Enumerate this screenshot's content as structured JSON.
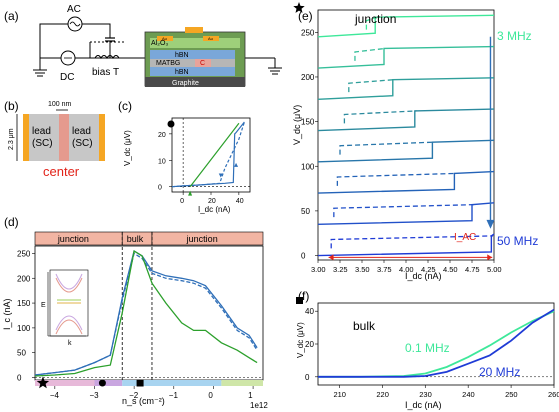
{
  "panels": {
    "a": {
      "label": "(a)",
      "ac": "AC",
      "dc": "DC",
      "biasT": "bias T",
      "layers": [
        "Al₂O₃",
        "Au",
        "Au",
        "hBN",
        "MATBG",
        "C",
        "hBN",
        "Graphite"
      ]
    },
    "b": {
      "label": "(b)",
      "scale_top": "100 nm",
      "scale_side": "2.3 μm",
      "lead": "lead",
      "sc": "(SC)",
      "center": "center"
    },
    "c": {
      "label": "(c)",
      "ylabel": "V_dc (μV)",
      "xlabel": "I_dc (nA)",
      "xticks": [
        "0",
        "20",
        "40"
      ],
      "yticks": [
        "0",
        "10",
        "20"
      ]
    },
    "d": {
      "label": "(d)",
      "ylabel": "I_c (nA)",
      "xlabel": "n_s (cm⁻²)",
      "exp": "1e12",
      "regions": [
        "junction",
        "bulk",
        "junction"
      ],
      "xticks": [
        "−4",
        "−3",
        "−2",
        "−1",
        "0",
        "1"
      ],
      "yticks": [
        "0",
        "50",
        "100",
        "150",
        "200",
        "250"
      ],
      "inset_E": "E",
      "inset_k": "k"
    },
    "e": {
      "label": "(e)",
      "title": "junction",
      "ylabel": "V_dc (μV)",
      "xlabel": "I_dc (nA)",
      "xticks": [
        "3.00",
        "3.25",
        "3.50",
        "3.75",
        "4.00",
        "4.25",
        "4.50",
        "4.75",
        "5.00"
      ],
      "yticks": [
        "0",
        "50",
        "100",
        "150",
        "200",
        "250"
      ],
      "top_freq": "3 MHz",
      "bottom_freq": "50 MHz",
      "iac": "I_AC"
    },
    "f": {
      "label": "(f)",
      "title": "bulk",
      "ylabel": "V_dc (μV)",
      "xlabel": "I_dc (nA)",
      "xticks": [
        "210",
        "220",
        "230",
        "240",
        "250",
        "260"
      ],
      "yticks": [
        "0",
        "20",
        "40"
      ],
      "freq_a": "0.1 MHz",
      "freq_b": "20 MHz"
    }
  },
  "chart_data": [
    {
      "type": "line",
      "panel": "c",
      "xlim": [
        -8,
        48
      ],
      "ylim": [
        -2,
        26
      ],
      "series": [
        {
          "x": [
            -8,
            0,
            10,
            20,
            30,
            36,
            37,
            38,
            44
          ],
          "y": [
            0,
            0.3,
            0.6,
            1.0,
            1.3,
            1.6,
            20,
            20.5,
            24.5
          ]
        },
        {
          "x": [
            -8,
            0,
            10,
            20,
            26,
            27,
            30,
            40,
            44
          ],
          "y": [
            0,
            0.3,
            0.6,
            1.0,
            1.3,
            2.5,
            7,
            18,
            24.5
          ],
          "dashed": true
        },
        {
          "x": [
            5,
            40
          ],
          "y": [
            0,
            24
          ],
          "color": "green"
        }
      ]
    },
    {
      "type": "line",
      "panel": "d",
      "xlim": [
        -4.5,
        1.25
      ],
      "ylim": [
        -5,
        265
      ],
      "regions": [
        {
          "name": "junction",
          "from": -4.5,
          "to": -2.3
        },
        {
          "name": "bulk",
          "from": -2.3,
          "to": -1.55
        },
        {
          "name": "junction",
          "from": -1.55,
          "to": 1.25
        }
      ],
      "series": [
        {
          "name": "blue",
          "x": [
            -4.5,
            -4.0,
            -3.5,
            -3.0,
            -2.6,
            -2.3,
            -2.0,
            -1.8,
            -1.55,
            -1.2,
            -0.8,
            -0.5,
            -0.2,
            0.2,
            0.6,
            0.9,
            1.1
          ],
          "y": [
            5,
            10,
            15,
            30,
            45,
            160,
            255,
            245,
            215,
            205,
            200,
            195,
            185,
            145,
            100,
            85,
            60
          ]
        },
        {
          "name": "blue-dashed",
          "x": [
            -4.5,
            -4.0,
            -3.5,
            -3.0,
            -2.6,
            -2.3,
            -2.0,
            -1.8,
            -1.55,
            -1.2,
            -0.8,
            -0.5,
            -0.2,
            0.2,
            0.6,
            0.9,
            1.1
          ],
          "y": [
            5,
            10,
            15,
            30,
            45,
            155,
            250,
            240,
            210,
            200,
            195,
            190,
            180,
            140,
            95,
            80,
            55
          ],
          "dashed": true
        },
        {
          "name": "green",
          "x": [
            -4.5,
            -4.0,
            -3.5,
            -3.0,
            -2.6,
            -2.3,
            -2.0,
            -1.8,
            -1.55,
            -1.2,
            -0.8,
            -0.5,
            -0.2,
            0.2,
            0.6,
            0.9,
            1.1
          ],
          "y": [
            3,
            5,
            8,
            20,
            25,
            130,
            255,
            245,
            190,
            150,
            110,
            95,
            95,
            70,
            55,
            40,
            30
          ]
        }
      ],
      "markers": [
        {
          "x": -4.3,
          "shape": "star"
        },
        {
          "x": -2.8,
          "shape": "circle"
        },
        {
          "x": -1.85,
          "shape": "square"
        }
      ]
    },
    {
      "type": "line",
      "panel": "e",
      "xlim": [
        3.0,
        5.0
      ],
      "ylim": [
        -5,
        275
      ],
      "offsets": [
        0,
        35,
        70,
        105,
        140,
        175,
        210,
        245
      ],
      "switch_x": [
        4.97,
        4.75,
        4.55,
        4.3,
        4.1,
        3.85,
        3.75,
        3.65
      ],
      "dashed_switch_x": [
        3.15,
        3.18,
        3.22,
        3.25,
        3.3,
        3.35,
        3.42,
        3.55
      ]
    },
    {
      "type": "line",
      "panel": "f",
      "xlim": [
        205,
        260
      ],
      "ylim": [
        -5,
        45
      ],
      "series": [
        {
          "name": "0.1 MHz",
          "x": [
            205,
            215,
            225,
            230,
            235,
            240,
            245,
            250,
            255,
            260
          ],
          "y": [
            0,
            0,
            0.5,
            2,
            6,
            12,
            19,
            27,
            34,
            40
          ]
        },
        {
          "name": "20 MHz",
          "x": [
            205,
            215,
            225,
            230,
            235,
            240,
            245,
            250,
            255,
            260
          ],
          "y": [
            0,
            0,
            0,
            0.5,
            3,
            8,
            13,
            22,
            33,
            41
          ]
        }
      ]
    }
  ],
  "colors": {
    "bluedark": "#1f3bd6",
    "blue": "#2f6fb8",
    "green": "#2ca02c",
    "teal": "#29b39c",
    "mint": "#3ee89a",
    "orange": "#f5a623",
    "pink": "#e59a8e"
  }
}
